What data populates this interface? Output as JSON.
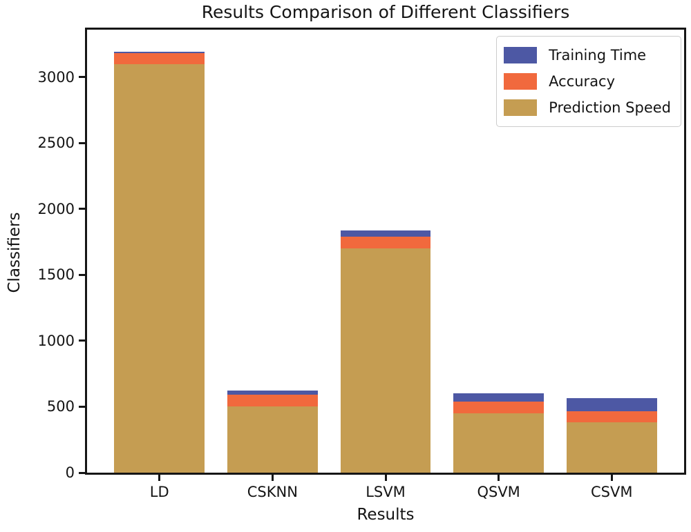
{
  "chart_data": {
    "type": "bar",
    "stacked": true,
    "title": "Results Comparison of Different Classifiers",
    "xlabel": "Results",
    "ylabel": "Classifiers",
    "categories": [
      "LD",
      "CSKNN",
      "LSVM",
      "QSVM",
      "CSVM"
    ],
    "series": [
      {
        "name": "Prediction Speed",
        "color": "#c59d52",
        "values": [
          3100,
          500,
          1700,
          450,
          380
        ]
      },
      {
        "name": "Accuracy",
        "color": "#f1693d",
        "values": [
          80,
          90,
          88,
          88,
          88
        ]
      },
      {
        "name": "Training Time",
        "color": "#4d58a4",
        "values": [
          15,
          35,
          48,
          65,
          100
        ]
      }
    ],
    "legend": {
      "position": "upper right",
      "order": [
        "Training Time",
        "Accuracy",
        "Prediction Speed"
      ]
    },
    "y_ticks": [
      0,
      500,
      1000,
      1500,
      2000,
      2500,
      3000
    ],
    "ylim": [
      0,
      3360
    ],
    "grid": false,
    "colors": {
      "spine": "#161616",
      "background": "#ffffff",
      "text": "#141414",
      "legend_border": "#cccccc"
    }
  }
}
